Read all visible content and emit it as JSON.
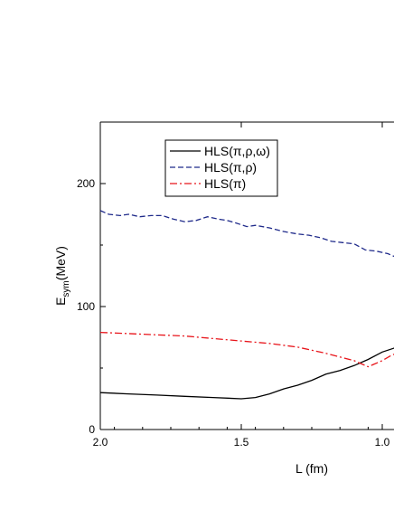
{
  "chart_data": {
    "type": "line",
    "xlabel": "L (fm)",
    "ylabel_main": "E",
    "ylabel_sub": "sym",
    "ylabel_unit": "(MeV)",
    "xlim": [
      2.0,
      0.94
    ],
    "ylim": [
      0,
      250
    ],
    "x_reversed": true,
    "x_ticks": [
      2.0,
      1.5,
      1.0
    ],
    "x_tick_labels": [
      "2.0",
      "1.5",
      "1.0"
    ],
    "y_ticks": [
      0,
      100,
      200
    ],
    "y_tick_labels": [
      "0",
      "100",
      "200"
    ],
    "legend_placement": "top-left",
    "series": [
      {
        "name": "HLS(π,ρ,ω)",
        "color": "#000000",
        "style": "solid",
        "x": [
          2.0,
          1.9,
          1.8,
          1.7,
          1.6,
          1.5,
          1.45,
          1.4,
          1.35,
          1.3,
          1.25,
          1.2,
          1.15,
          1.1,
          1.05,
          1.0,
          0.96,
          0.94
        ],
        "y": [
          30,
          29,
          28,
          27,
          26,
          25,
          26,
          29,
          33,
          36,
          40,
          45,
          48,
          52,
          57,
          63,
          66,
          68
        ]
      },
      {
        "name": "HLS(π,ρ)",
        "color": "#1f2a8a",
        "style": "dashed",
        "x": [
          2.0,
          1.97,
          1.93,
          1.9,
          1.86,
          1.82,
          1.78,
          1.74,
          1.7,
          1.66,
          1.62,
          1.58,
          1.55,
          1.52,
          1.48,
          1.45,
          1.4,
          1.35,
          1.3,
          1.26,
          1.22,
          1.18,
          1.14,
          1.1,
          1.06,
          1.02,
          0.98,
          0.94
        ],
        "y": [
          178,
          175,
          174,
          175,
          173,
          174,
          174,
          171,
          169,
          170,
          173,
          171,
          170,
          168,
          165,
          166,
          164,
          161,
          159,
          158,
          156,
          153,
          152,
          151,
          146,
          145,
          143,
          139
        ]
      },
      {
        "name": "HLS(π)",
        "color": "#e8151b",
        "style": "dashdot",
        "x": [
          2.0,
          1.9,
          1.8,
          1.7,
          1.6,
          1.5,
          1.4,
          1.3,
          1.2,
          1.15,
          1.1,
          1.07,
          1.05,
          1.03,
          1.0,
          0.97,
          0.94
        ],
        "y": [
          79,
          78,
          77,
          76,
          74,
          72,
          70,
          67,
          62,
          59,
          56,
          53,
          51,
          53,
          56,
          60,
          63
        ]
      }
    ]
  }
}
